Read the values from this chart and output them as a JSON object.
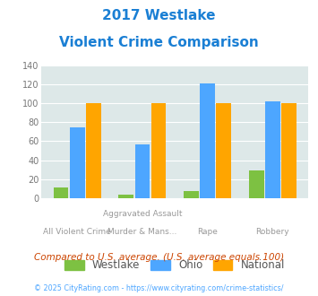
{
  "title_line1": "2017 Westlake",
  "title_line2": "Violent Crime Comparison",
  "cat_labels_top": [
    "",
    "Aggravated Assault",
    "",
    ""
  ],
  "cat_labels_bot": [
    "All Violent Crime",
    "Murder & Mans...",
    "Rape",
    "Robbery"
  ],
  "westlake": [
    11,
    4,
    8,
    29
  ],
  "ohio": [
    75,
    57,
    121,
    102
  ],
  "national": [
    100,
    100,
    100,
    100
  ],
  "westlake_color": "#7dc142",
  "ohio_color": "#4da6ff",
  "national_color": "#ffa500",
  "ylim": [
    0,
    140
  ],
  "yticks": [
    0,
    20,
    40,
    60,
    80,
    100,
    120,
    140
  ],
  "subtitle_text": "Compared to U.S. average. (U.S. average equals 100)",
  "footer_text": "© 2025 CityRating.com - https://www.cityrating.com/crime-statistics/",
  "bg_color": "#dde8e8",
  "title_color": "#1a7fd4",
  "subtitle_color": "#cc4400",
  "footer_color": "#4da6ff",
  "legend_labels": [
    "Westlake",
    "Ohio",
    "National"
  ]
}
